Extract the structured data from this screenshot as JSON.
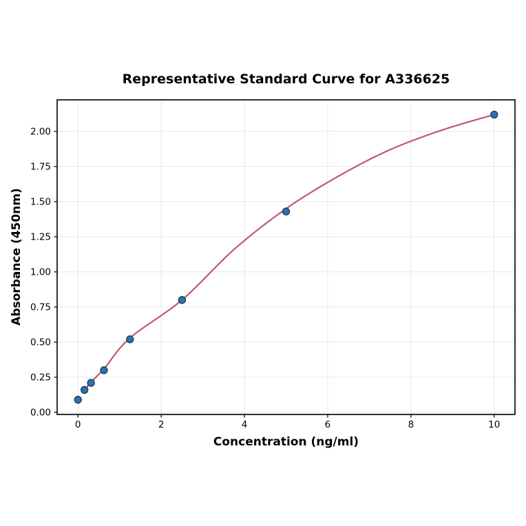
{
  "chart_data": {
    "type": "scatter",
    "title": "Representative Standard Curve for A336625",
    "xlabel": "Concentration (ng/ml)",
    "ylabel": "Absorbance (450nm)",
    "xlim": [
      -0.5,
      10.5
    ],
    "ylim": [
      -0.015,
      2.225
    ],
    "grid": true,
    "legend": false,
    "xticks": [
      0,
      2,
      4,
      6,
      8,
      10
    ],
    "xtick_labels": [
      "0",
      "2",
      "4",
      "6",
      "8",
      "10"
    ],
    "yticks": [
      0.0,
      0.25,
      0.5,
      0.75,
      1.0,
      1.25,
      1.5,
      1.75,
      2.0
    ],
    "ytick_labels": [
      "0.00",
      "0.25",
      "0.50",
      "0.75",
      "1.00",
      "1.25",
      "1.50",
      "1.75",
      "2.00"
    ],
    "points": [
      {
        "x": 0,
        "y": 0.09
      },
      {
        "x": 0.156,
        "y": 0.16
      },
      {
        "x": 0.313,
        "y": 0.21
      },
      {
        "x": 0.625,
        "y": 0.3
      },
      {
        "x": 1.25,
        "y": 0.52
      },
      {
        "x": 2.5,
        "y": 0.8
      },
      {
        "x": 5,
        "y": 1.43
      },
      {
        "x": 10,
        "y": 2.12
      }
    ],
    "fit_curve": [
      {
        "x": 0.156,
        "y": 0.16
      },
      {
        "x": 0.313,
        "y": 0.215
      },
      {
        "x": 0.625,
        "y": 0.31
      },
      {
        "x": 1.25,
        "y": 0.53
      },
      {
        "x": 2.5,
        "y": 0.8
      },
      {
        "x": 3.75,
        "y": 1.16
      },
      {
        "x": 5,
        "y": 1.45
      },
      {
        "x": 6.25,
        "y": 1.68
      },
      {
        "x": 7.5,
        "y": 1.87
      },
      {
        "x": 8.75,
        "y": 2.01
      },
      {
        "x": 10,
        "y": 2.12
      }
    ],
    "colors": {
      "curve": "#c2556b",
      "point_fill": "#2d72ae",
      "point_edge": "#1a3e63",
      "grid": "#e7e7e7",
      "frame": "#1a1a1a",
      "tick": "#1a1a1a"
    }
  }
}
